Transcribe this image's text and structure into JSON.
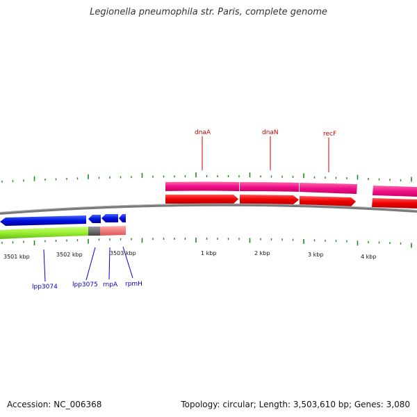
{
  "title": "Legionella pneumophila str. Paris, complete genome",
  "footer": {
    "accession": "Accession: NC_006368",
    "summary": "Topology: circular; Length: 3,503,610 bp; Genes: 3,080"
  },
  "colors": {
    "backbone": "#808080",
    "forward_cds": "#ff0066",
    "forward_gene": "#ff0000",
    "reverse_cds": "#0000ff",
    "reverse_gene_green": "#99ee33",
    "reverse_gene_grey": "#666666",
    "reverse_gene_pink": "#ff8080",
    "tick": "#228822",
    "forward_label": "#cc0000",
    "reverse_label": "#0000cc"
  },
  "tick_labels": [
    "3501 kbp",
    "3502 kbp",
    "3503 kbp",
    "1 kbp",
    "2 kbp",
    "3 kbp",
    "4 kbp"
  ],
  "forward_genes": [
    {
      "name": "dnaA"
    },
    {
      "name": "dnaN"
    },
    {
      "name": "recF"
    }
  ],
  "reverse_genes": [
    {
      "name": "lpp3074"
    },
    {
      "name": "lpp3075"
    },
    {
      "name": "rnpA"
    },
    {
      "name": "rpmH"
    }
  ]
}
